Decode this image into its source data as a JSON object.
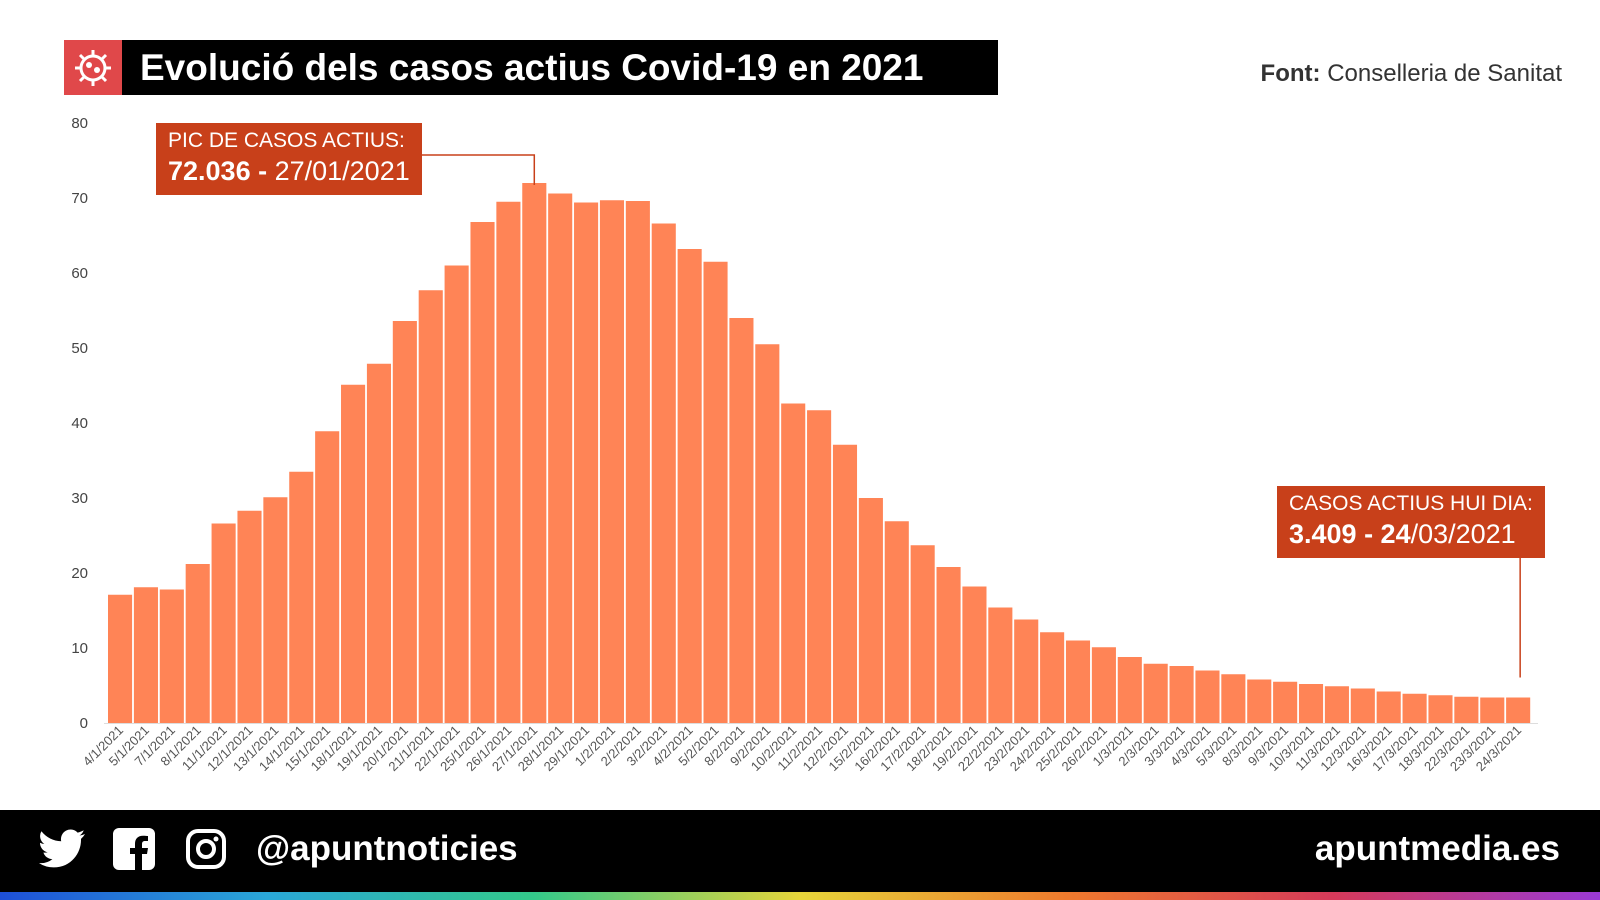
{
  "header": {
    "title": "Evolució dels casos actius Covid-19 en 2021",
    "source_label": "Font:",
    "source_value": "Conselleria de Sanitat",
    "icon": "virus-icon"
  },
  "annotations": {
    "peak_line1": "PIC DE CASOS ACTIUS:",
    "peak_value": "72.036 -",
    "peak_date": "27/01/2021",
    "today_line1": "CASOS ACTIUS HUI DIA:",
    "today_value": "3.409 - 24",
    "today_date": "/03/2021"
  },
  "footer": {
    "handle": "@apuntnoticies",
    "site": "apuntmedia.es",
    "icons": [
      "twitter-icon",
      "facebook-icon",
      "instagram-icon"
    ]
  },
  "colors": {
    "bar": "#ff8456",
    "annotation": "#c8401a",
    "title_icon_bg": "#e0484a"
  },
  "chart_data": {
    "type": "bar",
    "ylim": [
      0,
      80
    ],
    "yticks": [
      0,
      10,
      20,
      30,
      40,
      50,
      60,
      70,
      80
    ],
    "grid": false,
    "categories": [
      "4/1/2021",
      "5/1/2021",
      "7/1/2021",
      "8/1/2021",
      "11/1/2021",
      "12/1/2021",
      "13/1/2021",
      "14/1/2021",
      "15/1/2021",
      "18/1/2021",
      "19/1/2021",
      "20/1/2021",
      "21/1/2021",
      "22/1/2021",
      "25/1/2021",
      "26/1/2021",
      "27/1/2021",
      "28/1/2021",
      "29/1/2021",
      "1/2/2021",
      "2/2/2021",
      "3/2/2021",
      "4/2/2021",
      "5/2/2021",
      "8/2/2021",
      "9/2/2021",
      "10/2/2021",
      "11/2/2021",
      "12/2/2021",
      "15/2/2021",
      "16/2/2021",
      "17/2/2021",
      "18/2/2021",
      "19/2/2021",
      "22/2/2021",
      "23/2/2021",
      "24/2/2021",
      "25/2/2021",
      "26/2/2021",
      "1/3/2021",
      "2/3/2021",
      "3/3/2021",
      "4/3/2021",
      "5/3/2021",
      "8/3/2021",
      "9/3/2021",
      "10/3/2021",
      "11/3/2021",
      "12/3/2021",
      "16/3/2021",
      "17/3/2021",
      "18/3/2021",
      "22/3/2021",
      "23/3/2021",
      "24/3/2021"
    ],
    "values": [
      17.1,
      18.1,
      17.8,
      21.2,
      26.6,
      28.3,
      30.1,
      33.5,
      38.9,
      45.1,
      47.9,
      53.6,
      57.7,
      61.0,
      66.8,
      69.5,
      72.0,
      70.6,
      69.4,
      69.7,
      69.6,
      66.6,
      63.2,
      61.5,
      54.0,
      50.5,
      42.6,
      41.7,
      37.1,
      30.0,
      26.9,
      23.7,
      20.8,
      18.2,
      15.4,
      13.8,
      12.1,
      11.0,
      10.1,
      8.8,
      7.9,
      7.6,
      7.0,
      6.5,
      5.8,
      5.5,
      5.2,
      4.9,
      4.6,
      4.2,
      3.9,
      3.7,
      3.5,
      3.4,
      3.4
    ]
  }
}
